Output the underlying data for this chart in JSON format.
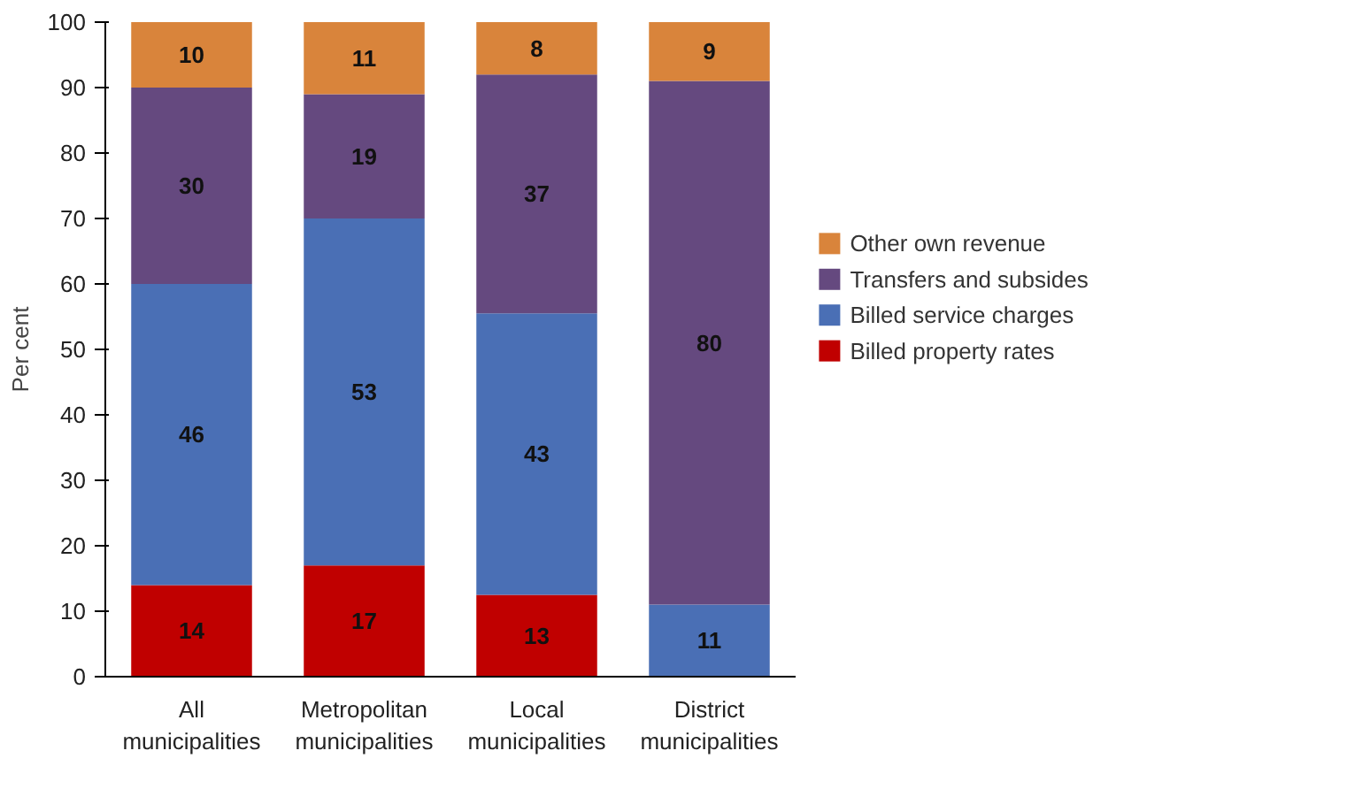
{
  "chart_data": {
    "type": "bar",
    "stacked": true,
    "ylabel": "Per cent",
    "categories": [
      "All municipalities",
      "Metropolitan municipalities",
      "Local municipalities",
      "District municipalities"
    ],
    "series": [
      {
        "name": "Billed property rates",
        "color": "#c00000",
        "values": [
          14,
          17,
          12.5,
          null
        ],
        "value_labels": [
          "14",
          "17",
          "13",
          null
        ]
      },
      {
        "name": "Billed service charges",
        "color": "#4a6fb5",
        "values": [
          46,
          53,
          43,
          11
        ],
        "value_labels": [
          "46",
          "53",
          "43",
          "11"
        ]
      },
      {
        "name": "Transfers and subsides",
        "color": "#65497f",
        "values": [
          30,
          19,
          36.5,
          80
        ],
        "value_labels": [
          "30",
          "19",
          "37",
          "80"
        ]
      },
      {
        "name": "Other own revenue",
        "color": "#d9843b",
        "values": [
          10,
          11,
          8,
          9
        ],
        "value_labels": [
          "10",
          "11",
          "8",
          "9"
        ]
      }
    ],
    "ylim": [
      0,
      100
    ],
    "yticks": [
      0,
      10,
      20,
      30,
      40,
      50,
      60,
      70,
      80,
      90,
      100
    ],
    "grid": false,
    "legend": "right"
  }
}
